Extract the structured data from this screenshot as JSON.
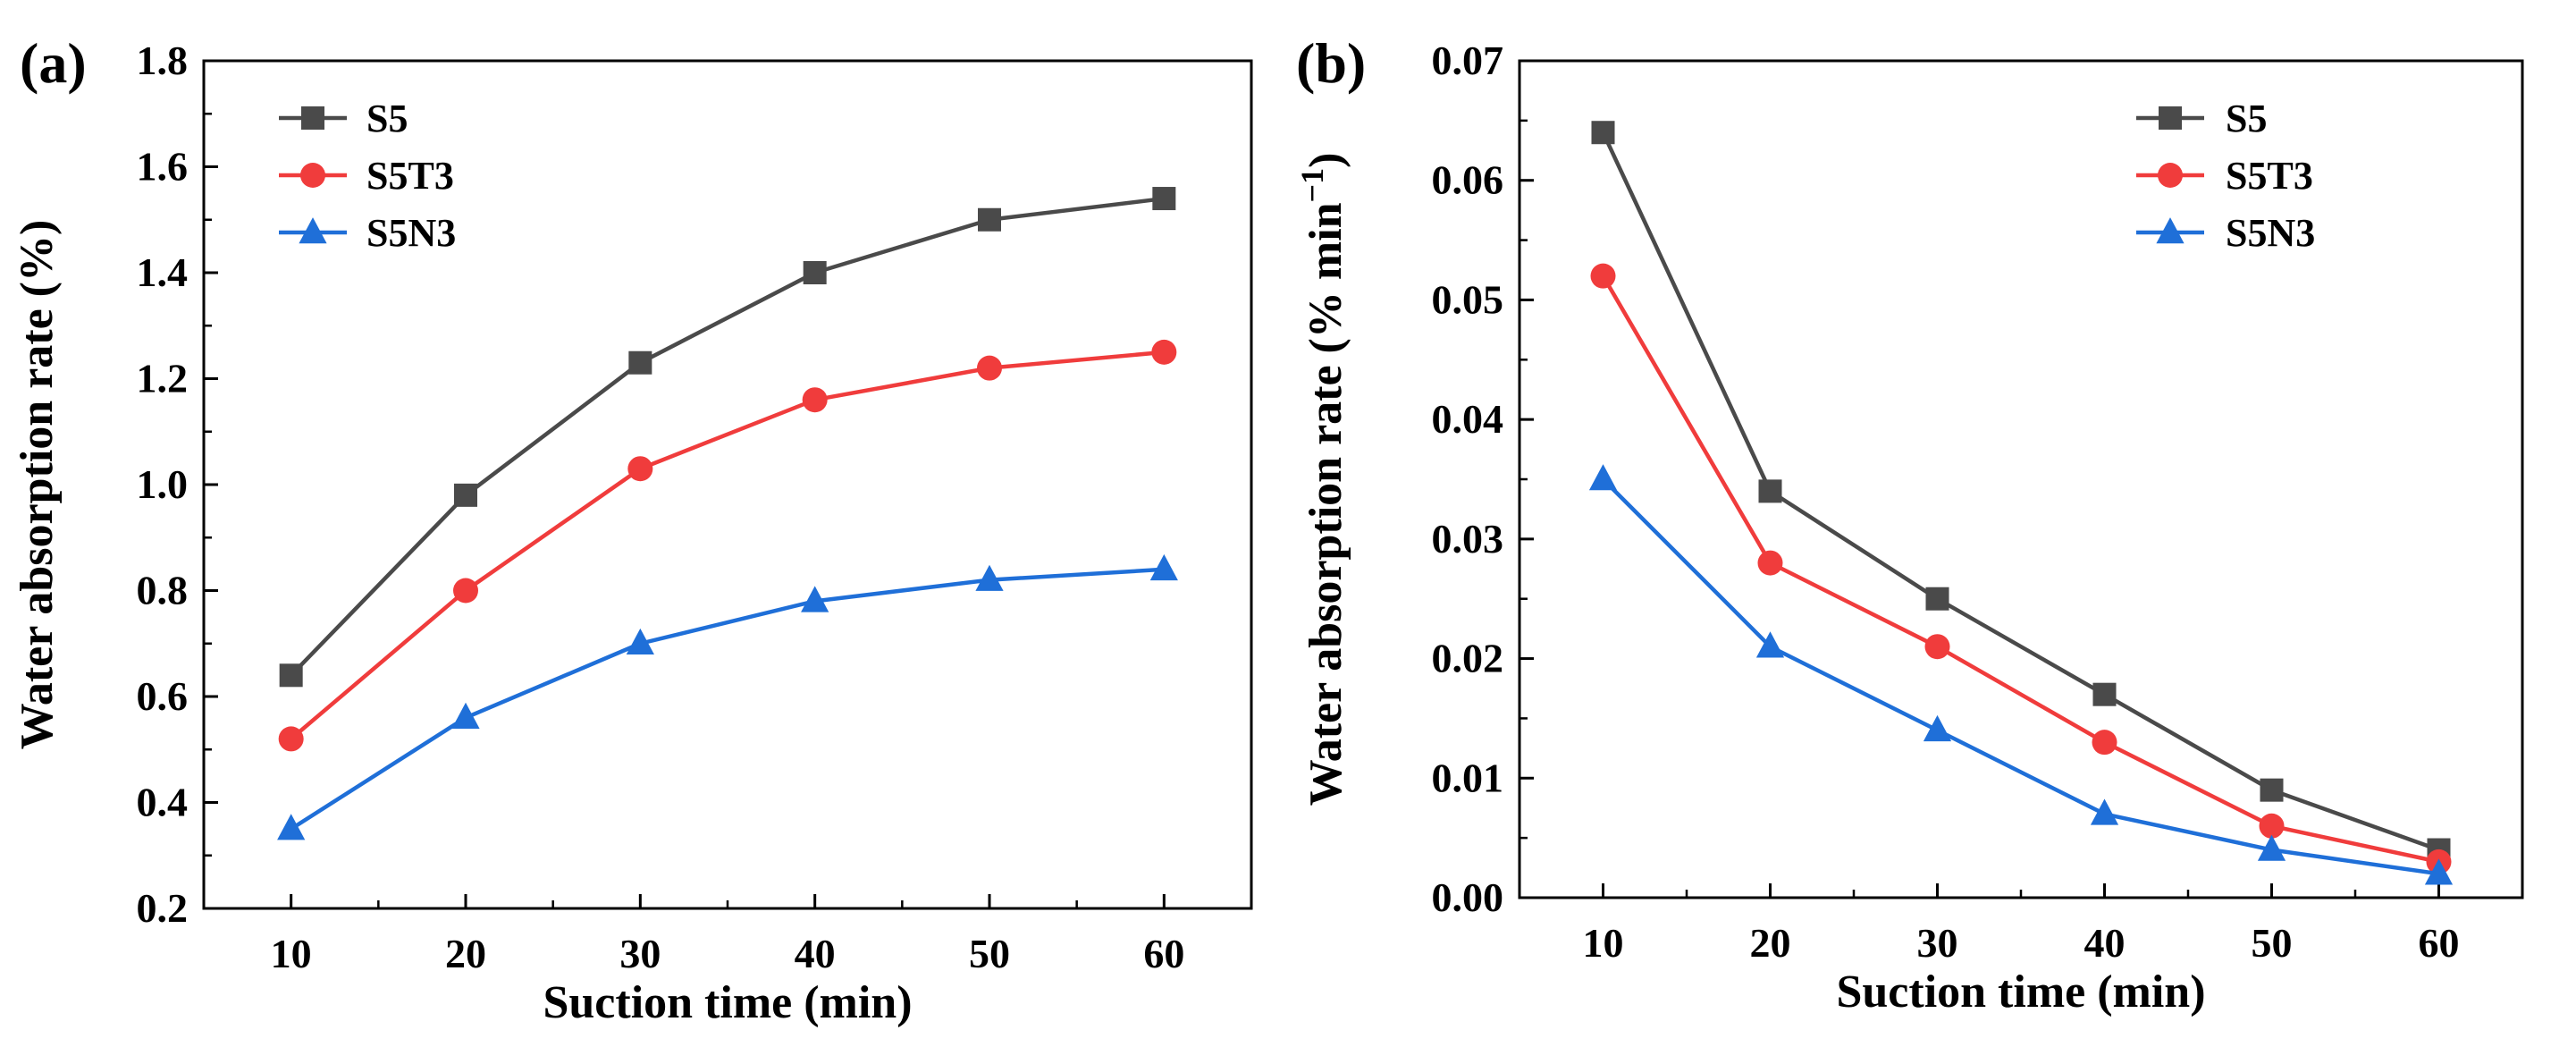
{
  "chart_data": [
    {
      "type": "line",
      "panel_label": "(a)",
      "xlabel": "Suction time (min)",
      "ylabel": "Water absorption rate (%)",
      "x": [
        10,
        20,
        30,
        40,
        50,
        60
      ],
      "xticks": [
        "10",
        "20",
        "30",
        "40",
        "50",
        "60"
      ],
      "ylim": [
        0.2,
        1.8
      ],
      "yticks": [
        "0.2",
        "0.4",
        "0.6",
        "0.8",
        "1.0",
        "1.2",
        "1.4",
        "1.6",
        "1.8"
      ],
      "legend_position": "top-left",
      "series": [
        {
          "name": "S5",
          "values": [
            0.64,
            0.98,
            1.23,
            1.4,
            1.5,
            1.54
          ],
          "color": "#4a4a4a",
          "marker": "square"
        },
        {
          "name": "S5T3",
          "values": [
            0.52,
            0.8,
            1.03,
            1.16,
            1.22,
            1.25
          ],
          "color": "#f03c3c",
          "marker": "circle"
        },
        {
          "name": "S5N3",
          "values": [
            0.35,
            0.56,
            0.7,
            0.78,
            0.82,
            0.84
          ],
          "color": "#1f6fd8",
          "marker": "triangle"
        }
      ]
    },
    {
      "type": "line",
      "panel_label": "(b)",
      "xlabel": "Suction time (min)",
      "ylabel": "Water absorption rate (% min",
      "ylabel_superscript": "−1",
      "ylabel_suffix": ")",
      "x": [
        10,
        20,
        30,
        40,
        50,
        60
      ],
      "xticks": [
        "10",
        "20",
        "30",
        "40",
        "50",
        "60"
      ],
      "ylim": [
        0.0,
        0.07
      ],
      "yticks": [
        "0.00",
        "0.01",
        "0.02",
        "0.03",
        "0.04",
        "0.05",
        "0.06",
        "0.07"
      ],
      "legend_position": "top-right",
      "series": [
        {
          "name": "S5",
          "values": [
            0.064,
            0.034,
            0.025,
            0.017,
            0.009,
            0.004
          ],
          "color": "#4a4a4a",
          "marker": "square"
        },
        {
          "name": "S5T3",
          "values": [
            0.052,
            0.028,
            0.021,
            0.013,
            0.006,
            0.003
          ],
          "color": "#f03c3c",
          "marker": "circle"
        },
        {
          "name": "S5N3",
          "values": [
            0.035,
            0.021,
            0.014,
            0.007,
            0.004,
            0.002
          ],
          "color": "#1f6fd8",
          "marker": "triangle"
        }
      ]
    }
  ]
}
